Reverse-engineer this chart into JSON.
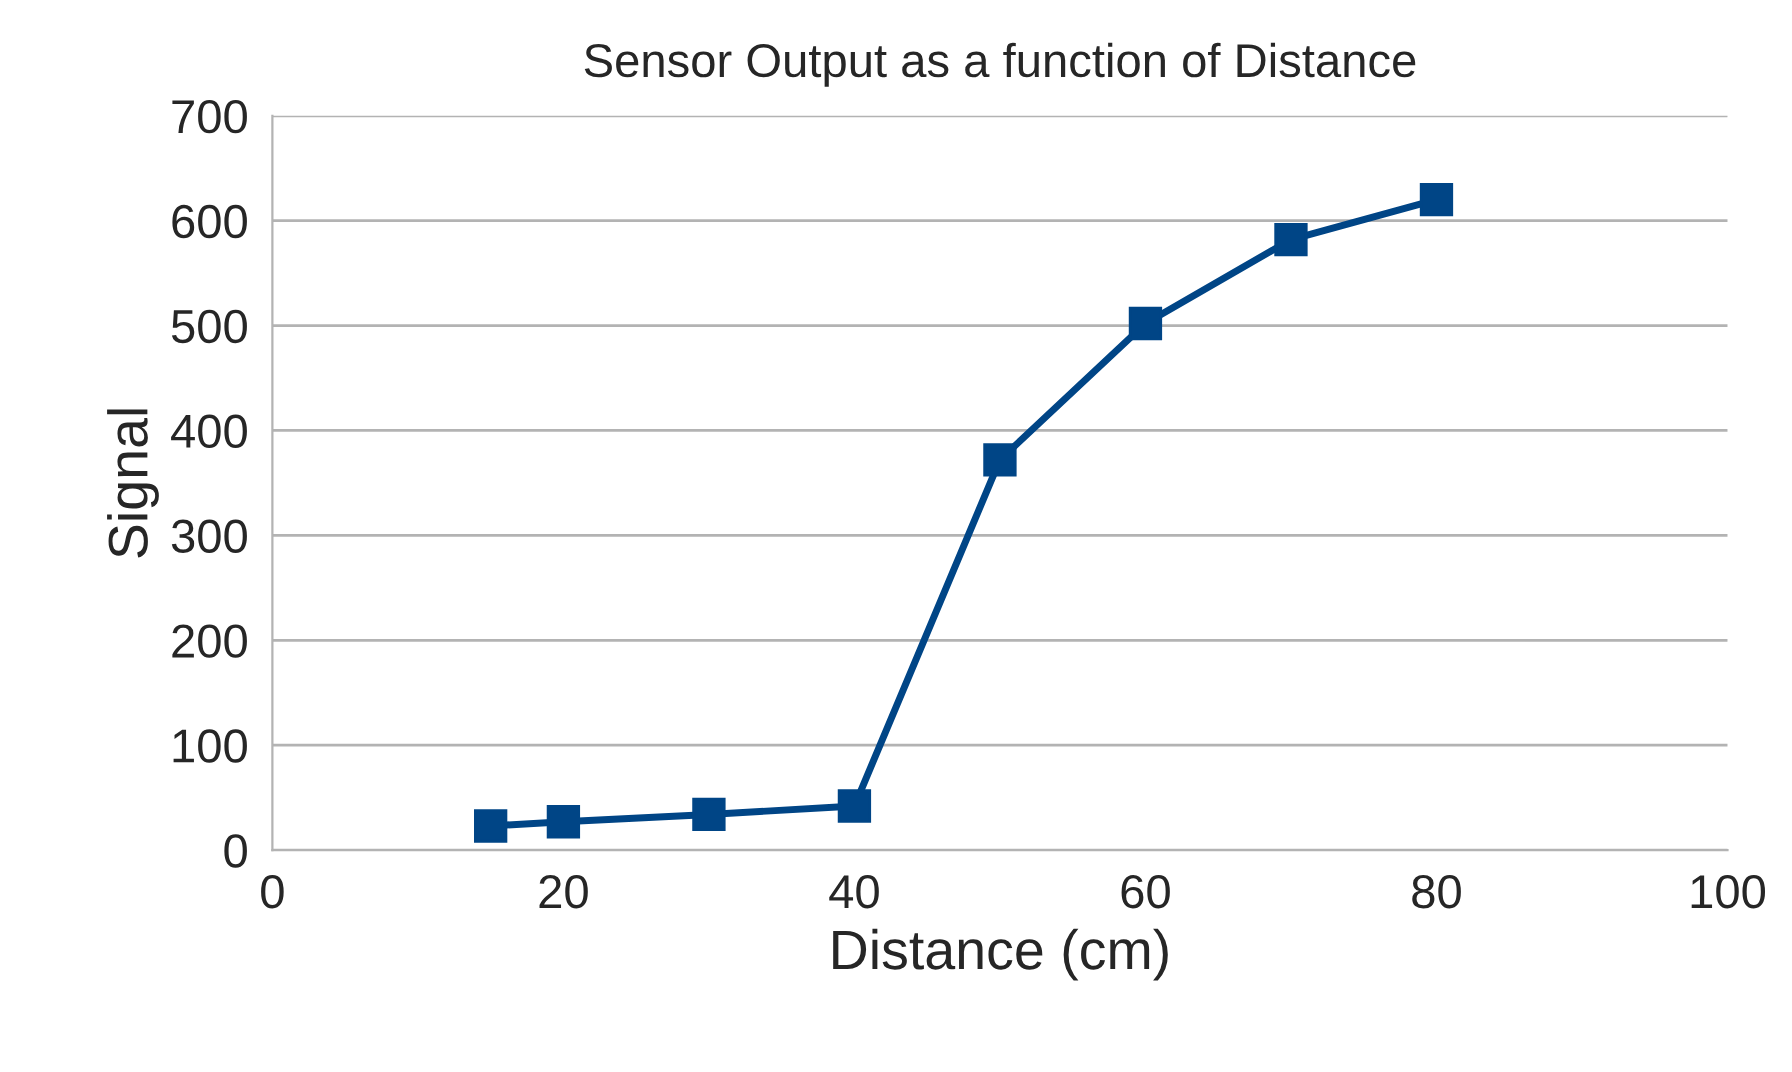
{
  "chart_data": {
    "type": "line",
    "title": "Sensor Output as a function of Distance",
    "xlabel": "Distance (cm)",
    "ylabel": "Signal",
    "x": [
      15,
      20,
      30,
      40,
      50,
      60,
      70,
      80
    ],
    "series": [
      {
        "color": "#004586",
        "values": [
          23,
          27,
          34,
          42,
          372,
          502,
          582,
          620
        ]
      }
    ],
    "xlim": [
      0,
      100
    ],
    "xticks": [
      0,
      20,
      40,
      60,
      80,
      100
    ],
    "ylim": [
      0,
      700
    ],
    "yticks": [
      0,
      100,
      200,
      300,
      400,
      500,
      600,
      700
    ],
    "grid": "y",
    "marker": "square",
    "line_style": "solid"
  }
}
